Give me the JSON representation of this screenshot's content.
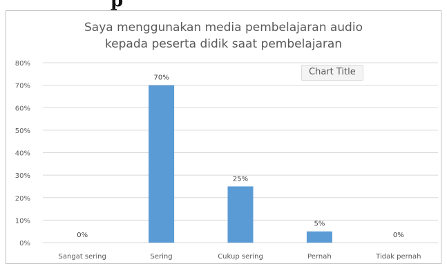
{
  "page_heading_fragment": "p",
  "tooltip_label": "Chart Title",
  "chart_data": {
    "type": "bar",
    "title": [
      "Saya menggunakan media pembelajaran audio",
      "kepada peserta didik saat pembelajaran"
    ],
    "categories": [
      "Sangat sering",
      "Sering",
      "Cukup sering",
      "Pernah",
      "Tidak pernah"
    ],
    "values": [
      0,
      70,
      25,
      5,
      0
    ],
    "data_labels": [
      "0%",
      "70%",
      "25%",
      "5%",
      "0%"
    ],
    "y_ticks": [
      "0%",
      "10%",
      "20%",
      "30%",
      "40%",
      "50%",
      "60%",
      "70%",
      "80%"
    ],
    "ylim": [
      0,
      80
    ],
    "grid": true,
    "legend": "none",
    "bar_color": "#5b9bd5",
    "gridline_color": "#d9d9d9",
    "text_color": "#595959"
  }
}
